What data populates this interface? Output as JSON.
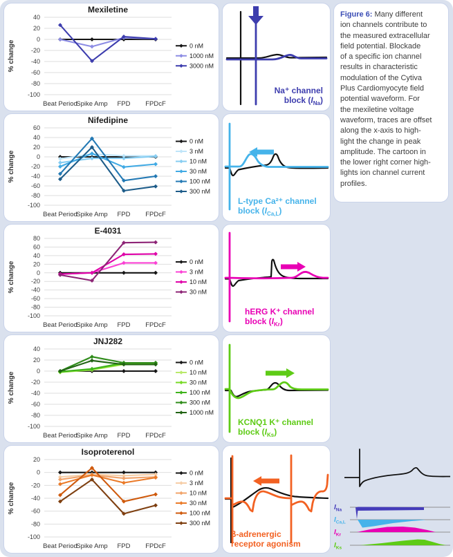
{
  "page": {
    "background": "#dae1ee",
    "panel_border": "#c9d3ea",
    "panel_background": "#ffffff",
    "grid_color": "#dedede",
    "axis_text_color": "#3c3c3c",
    "trace_black": "#111111"
  },
  "caption": {
    "label": "Figure 6:",
    "label_color": "#3b4db5",
    "text_color": "#3c3c3c",
    "lines": [
      "Many different",
      "ion channels contribute to",
      "the measured extracellular",
      "field potential.  Blockade",
      "of a specific ion channel",
      "results in characteristic",
      "modulation of the Cytiva",
      "Plus Cardiomyocyte field",
      "potential waveform. For",
      "the mexiletine voltage",
      "waveform, traces are offset",
      "along the x-axis to high-",
      "light the change in peak",
      "amplitude.  The cartoon in",
      "the lower right corner high-",
      "lights ion channel current",
      "profiles."
    ]
  },
  "chart_data": [
    {
      "type": "line",
      "title": "Mexiletine",
      "ylabel": "% change",
      "categories": [
        "Beat Period",
        "Spike Amp",
        "FPD",
        "FPDcF"
      ],
      "ylim": [
        -100,
        40
      ],
      "ytick_step": 20,
      "grid": true,
      "legend_position": "right",
      "series": [
        {
          "name": "0 nM",
          "color": "#151515",
          "values": [
            0,
            0,
            0,
            0
          ]
        },
        {
          "name": "1000 nM",
          "color": "#8c8ce4",
          "values": [
            0,
            -13,
            3,
            1
          ]
        },
        {
          "name": "3000 nM",
          "color": "#3d3dae",
          "values": [
            26,
            -39,
            5,
            1
          ]
        }
      ]
    },
    {
      "type": "line",
      "title": "Nifedipine",
      "ylabel": "% change",
      "categories": [
        "Beat Period",
        "Spike Amp",
        "FPD",
        "FPDcF"
      ],
      "ylim": [
        -100,
        60
      ],
      "ytick_step": 20,
      "grid": true,
      "legend_position": "right",
      "series": [
        {
          "name": "0 nM",
          "color": "#151515",
          "values": [
            0,
            0,
            0,
            0
          ]
        },
        {
          "name": "3 nM",
          "color": "#bfe5f9",
          "values": [
            -4,
            6,
            2,
            2
          ]
        },
        {
          "name": "10 nM",
          "color": "#86cdf2",
          "values": [
            -12,
            -3,
            -3,
            1
          ]
        },
        {
          "name": "30 nM",
          "color": "#41aae4",
          "values": [
            -20,
            7,
            -21,
            -15
          ]
        },
        {
          "name": "100 nM",
          "color": "#2379b4",
          "values": [
            -35,
            38,
            -49,
            -40
          ]
        },
        {
          "name": "300 nM",
          "color": "#1d5c89",
          "values": [
            -46,
            20,
            -70,
            -61
          ]
        }
      ]
    },
    {
      "type": "line",
      "title": "E-4031",
      "ylabel": "% change",
      "categories": [
        "Beat Period",
        "Spike Amp",
        "FPD",
        "FPDcF"
      ],
      "ylim": [
        -100,
        80
      ],
      "ytick_step": 20,
      "grid": true,
      "legend_position": "right",
      "series": [
        {
          "name": "0 nM",
          "color": "#151515",
          "values": [
            0,
            0,
            0,
            0
          ]
        },
        {
          "name": "3 nM",
          "color": "#fb41d4",
          "values": [
            -3,
            0,
            23,
            23
          ]
        },
        {
          "name": "10 nM",
          "color": "#df00a8",
          "values": [
            -3,
            0,
            43,
            44
          ]
        },
        {
          "name": "30 nM",
          "color": "#8d2476",
          "values": [
            -5,
            -18,
            70,
            71
          ]
        }
      ]
    },
    {
      "type": "line",
      "title": "JNJ282",
      "ylabel": "% change",
      "categories": [
        "Beat Period",
        "Spike Amp",
        "FPD",
        "FPDcF"
      ],
      "ylim": [
        -100,
        40
      ],
      "ytick_step": 20,
      "grid": true,
      "legend_position": "right",
      "series": [
        {
          "name": "0 nM",
          "color": "#151515",
          "values": [
            0,
            0,
            0,
            0
          ]
        },
        {
          "name": "10 nM",
          "color": "#b9e96a",
          "values": [
            -2,
            2,
            12,
            13
          ]
        },
        {
          "name": "30 nM",
          "color": "#77d926",
          "values": [
            -2,
            3,
            13,
            14
          ]
        },
        {
          "name": "100 nM",
          "color": "#3fb31c",
          "values": [
            -1,
            4,
            15,
            15
          ]
        },
        {
          "name": "300 nM",
          "color": "#2f8c1a",
          "values": [
            0,
            26,
            15,
            15
          ]
        },
        {
          "name": "1000 nM",
          "color": "#206313",
          "values": [
            0,
            19,
            12,
            12
          ]
        }
      ]
    },
    {
      "type": "line",
      "title": "Isoproterenol",
      "ylabel": "% change",
      "categories": [
        "Beat Period",
        "Spike Amp",
        "FPD",
        "FPDcF"
      ],
      "ylim": [
        -100,
        20
      ],
      "ytick_step": 20,
      "grid": true,
      "legend_position": "right",
      "series": [
        {
          "name": "0 nM",
          "color": "#151515",
          "values": [
            0,
            0,
            0,
            0
          ]
        },
        {
          "name": "3 nM",
          "color": "#f6cda6",
          "values": [
            -7,
            -3,
            -5,
            -3
          ]
        },
        {
          "name": "10 nM",
          "color": "#f1a36a",
          "values": [
            -11,
            -4,
            -9,
            -7
          ]
        },
        {
          "name": "30 nM",
          "color": "#ea7a28",
          "values": [
            -18,
            -4,
            -16,
            -8
          ]
        },
        {
          "name": "100 nM",
          "color": "#cf5a0d",
          "values": [
            -35,
            7,
            -45,
            -34
          ]
        },
        {
          "name": "300 nM",
          "color": "#7e3f10",
          "values": [
            -45,
            -11,
            -64,
            -51
          ]
        }
      ]
    }
  ],
  "rows": [
    {
      "waveform": {
        "type": "na",
        "color": "#3d3dae",
        "arrow": "down"
      },
      "block_label": {
        "color": "#3d3dae",
        "lines": [
          [
            {
              "t": "Na⁺ channel"
            }
          ],
          [
            {
              "t": "block ("
            },
            {
              "t": "I",
              "i": true
            },
            {
              "t": "Na",
              "s": true
            },
            {
              "t": ")"
            }
          ]
        ]
      }
    },
    {
      "waveform": {
        "type": "ca",
        "color": "#45b3ea",
        "arrow": "left"
      },
      "block_label": {
        "color": "#45b3ea",
        "lines": [
          [
            {
              "t": "L-type Ca²⁺ channel"
            }
          ],
          [
            {
              "t": "block ("
            },
            {
              "t": "I",
              "i": true
            },
            {
              "t": "Ca,L",
              "s": true
            },
            {
              "t": ")"
            }
          ]
        ]
      }
    },
    {
      "waveform": {
        "type": "kr",
        "color": "#e800b4",
        "arrow": "right"
      },
      "block_label": {
        "color": "#e800b4",
        "lines": [
          [
            {
              "t": "hERG K⁺ channel"
            }
          ],
          [
            {
              "t": "block ("
            },
            {
              "t": "I",
              "i": true
            },
            {
              "t": "Kr",
              "s": true
            },
            {
              "t": ")"
            }
          ]
        ]
      }
    },
    {
      "waveform": {
        "type": "ks",
        "color": "#5ecb16",
        "arrow": "right"
      },
      "block_label": {
        "color": "#5ecb16",
        "lines": [
          [
            {
              "t": "KCNQ1 K⁺ channel"
            }
          ],
          [
            {
              "t": "block ("
            },
            {
              "t": "I",
              "i": true
            },
            {
              "t": "Ks",
              "s": true
            },
            {
              "t": ")"
            }
          ]
        ]
      }
    },
    {
      "waveform": {
        "type": "beta",
        "color": "#f26122",
        "arrow": "left"
      },
      "block_label": {
        "color": "#f26122",
        "lines": [
          [
            {
              "t": "β-adrenergic"
            }
          ],
          [
            {
              "t": "receptor agonism"
            }
          ]
        ]
      }
    }
  ],
  "cartoon": {
    "currents": [
      {
        "symbol": "I",
        "sub": "Na",
        "color": "#453cba"
      },
      {
        "symbol": "I",
        "sub": "Ca,L",
        "color": "#45b3ea"
      },
      {
        "symbol": "I",
        "sub": "Kr",
        "color": "#e800b4"
      },
      {
        "symbol": "I",
        "sub": "Ks",
        "color": "#5ecb16"
      }
    ]
  }
}
